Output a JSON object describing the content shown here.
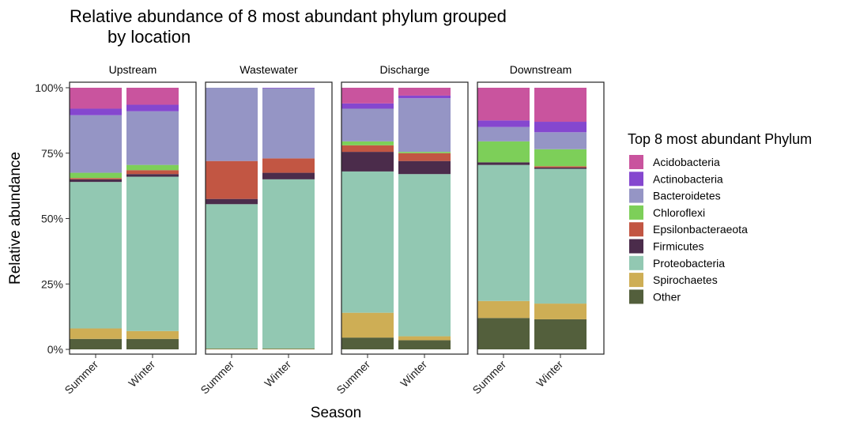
{
  "chart_data": {
    "type": "bar",
    "stacked": true,
    "title_line1": "Relative abundance of 8 most abundant phylum grouped",
    "title_line2": "by location",
    "xlabel": "Season",
    "ylabel": "Relative abundance",
    "ylim": [
      0,
      1
    ],
    "y_ticks": [
      "0%",
      "25%",
      "50%",
      "75%",
      "100%"
    ],
    "y_tick_values": [
      0,
      0.25,
      0.5,
      0.75,
      1.0
    ],
    "grid": false,
    "legend": {
      "title": "Top 8 most abundant Phylum",
      "placement": "right",
      "entries": [
        {
          "name": "Acidobacteria",
          "color": "#C9549E"
        },
        {
          "name": "Actinobacteria",
          "color": "#8547CF"
        },
        {
          "name": "Bacteroidetes",
          "color": "#9595C5"
        },
        {
          "name": "Chloroflexi",
          "color": "#7DCF59"
        },
        {
          "name": "Epsilonbacteraeota",
          "color": "#C25643"
        },
        {
          "name": "Firmicutes",
          "color": "#4B2C4B"
        },
        {
          "name": "Proteobacteria",
          "color": "#92C8B2"
        },
        {
          "name": "Spirochaetes",
          "color": "#CEAE55"
        },
        {
          "name": "Other",
          "color": "#535F3C"
        }
      ]
    },
    "stack_order_bottom_to_top": [
      "Other",
      "Spirochaetes",
      "Proteobacteria",
      "Firmicutes",
      "Epsilonbacteraeota",
      "Chloroflexi",
      "Bacteroidetes",
      "Actinobacteria",
      "Acidobacteria"
    ],
    "categories": [
      "Summer",
      "Winter"
    ],
    "facets": [
      {
        "name": "Upstream",
        "bars": [
          {
            "Other": 0.04,
            "Spirochaetes": 0.04,
            "Proteobacteria": 0.56,
            "Firmicutes": 0.01,
            "Epsilonbacteraeota": 0.005,
            "Chloroflexi": 0.02,
            "Bacteroidetes": 0.22,
            "Actinobacteria": 0.025,
            "Acidobacteria": 0.08
          },
          {
            "Other": 0.04,
            "Spirochaetes": 0.03,
            "Proteobacteria": 0.59,
            "Firmicutes": 0.01,
            "Epsilonbacteraeota": 0.015,
            "Chloroflexi": 0.02,
            "Bacteroidetes": 0.205,
            "Actinobacteria": 0.025,
            "Acidobacteria": 0.065
          }
        ]
      },
      {
        "name": "Wastewater",
        "bars": [
          {
            "Other": 0.002,
            "Spirochaetes": 0.001,
            "Proteobacteria": 0.552,
            "Firmicutes": 0.02,
            "Epsilonbacteraeota": 0.145,
            "Chloroflexi": 0.0,
            "Bacteroidetes": 0.28,
            "Actinobacteria": 0.0,
            "Acidobacteria": 0.0
          },
          {
            "Other": 0.002,
            "Spirochaetes": 0.001,
            "Proteobacteria": 0.647,
            "Firmicutes": 0.025,
            "Epsilonbacteraeota": 0.055,
            "Chloroflexi": 0.0,
            "Bacteroidetes": 0.268,
            "Actinobacteria": 0.002,
            "Acidobacteria": 0.0
          }
        ]
      },
      {
        "name": "Discharge",
        "bars": [
          {
            "Other": 0.045,
            "Spirochaetes": 0.095,
            "Proteobacteria": 0.54,
            "Firmicutes": 0.075,
            "Epsilonbacteraeota": 0.025,
            "Chloroflexi": 0.015,
            "Bacteroidetes": 0.125,
            "Actinobacteria": 0.02,
            "Acidobacteria": 0.06
          },
          {
            "Other": 0.035,
            "Spirochaetes": 0.015,
            "Proteobacteria": 0.62,
            "Firmicutes": 0.05,
            "Epsilonbacteraeota": 0.03,
            "Chloroflexi": 0.005,
            "Bacteroidetes": 0.205,
            "Actinobacteria": 0.01,
            "Acidobacteria": 0.03
          }
        ]
      },
      {
        "name": "Downstream",
        "bars": [
          {
            "Other": 0.12,
            "Spirochaetes": 0.065,
            "Proteobacteria": 0.52,
            "Firmicutes": 0.01,
            "Epsilonbacteraeota": 0.0,
            "Chloroflexi": 0.08,
            "Bacteroidetes": 0.055,
            "Actinobacteria": 0.025,
            "Acidobacteria": 0.125
          },
          {
            "Other": 0.115,
            "Spirochaetes": 0.06,
            "Proteobacteria": 0.515,
            "Firmicutes": 0.005,
            "Epsilonbacteraeota": 0.005,
            "Chloroflexi": 0.065,
            "Bacteroidetes": 0.065,
            "Actinobacteria": 0.04,
            "Acidobacteria": 0.13
          }
        ]
      }
    ]
  }
}
